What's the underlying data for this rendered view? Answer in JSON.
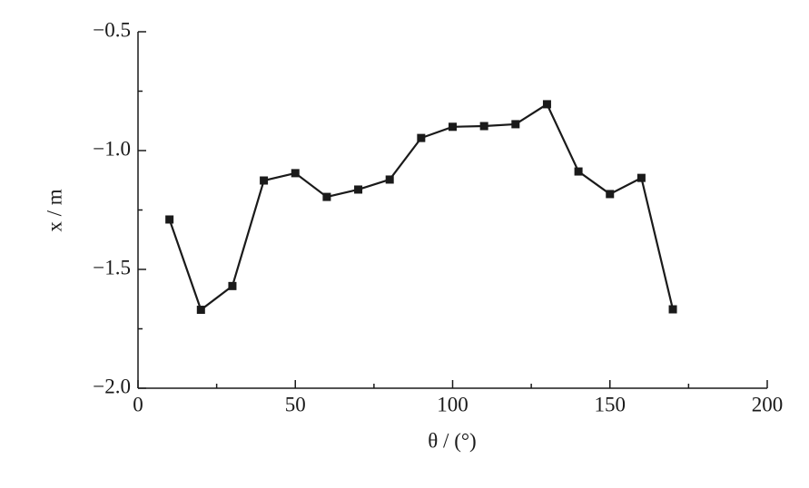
{
  "chart_data": {
    "type": "line",
    "x_label": "θ / (°)",
    "y_label": "x / m",
    "x": [
      10,
      20,
      30,
      40,
      50,
      60,
      70,
      80,
      90,
      100,
      110,
      120,
      130,
      140,
      150,
      160,
      170
    ],
    "series": [
      {
        "color": "#1a1a1a",
        "marker": "square",
        "values": [
          -1.29,
          -1.67,
          -1.57,
          -1.126,
          -1.095,
          -1.195,
          -1.164,
          -1.122,
          -0.947,
          -0.9,
          -0.897,
          -0.889,
          -0.805,
          -1.088,
          -1.183,
          -1.115,
          -1.668
        ]
      }
    ],
    "xlim": [
      0,
      200
    ],
    "xticks": [
      0,
      50,
      100,
      150,
      200
    ],
    "minor_xticks": [
      25,
      75,
      125,
      175
    ],
    "ylim": [
      -2.0,
      -0.5
    ],
    "yticks": [
      {
        "value": -2.0,
        "label": "−2.0"
      },
      {
        "value": -1.5,
        "label": "−1.5"
      },
      {
        "value": -1.0,
        "label": "−1.0"
      },
      {
        "value": -0.5,
        "label": "−0.5"
      }
    ],
    "minor_yticks": [
      -1.75,
      -1.25,
      -0.75
    ],
    "grid": false
  }
}
